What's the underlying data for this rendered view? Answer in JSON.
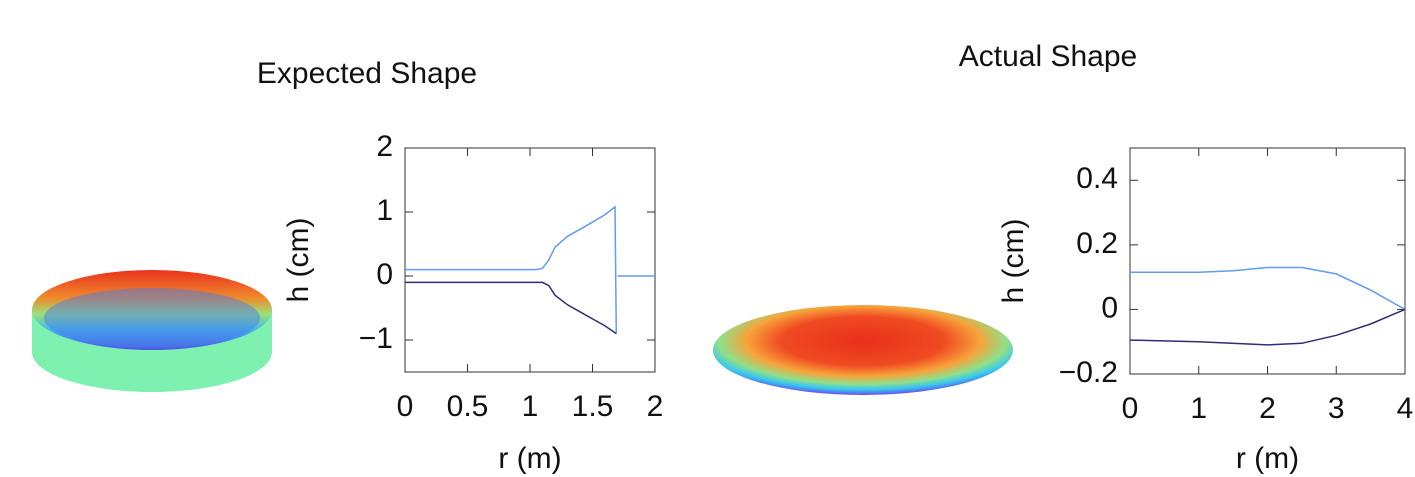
{
  "chart_data": [
    {
      "type": "line",
      "title": "Expected Shape",
      "xlabel": "r  (m)",
      "ylabel": "h  (cm)",
      "xlim": [
        0,
        2
      ],
      "xticks": [
        0,
        0.5,
        1,
        1.5,
        2
      ],
      "ylim": [
        -1.5,
        2
      ],
      "yticks": [
        {
          "value": -1,
          "label": "−1"
        },
        0,
        1,
        2
      ],
      "series": [
        {
          "color": "#5f9cf5",
          "x": [
            0,
            1.05,
            1.1,
            1.15,
            1.2,
            1.3,
            1.4,
            1.5,
            1.6,
            1.68,
            1.69,
            1.7,
            1.7,
            2
          ],
          "values": [
            0.1,
            0.1,
            0.12,
            0.25,
            0.45,
            0.62,
            0.73,
            0.84,
            0.96,
            1.08,
            -0.9,
            null,
            0,
            0
          ]
        },
        {
          "color": "#2e2e78",
          "x": [
            0,
            1.1,
            1.15,
            1.2,
            1.3,
            1.4,
            1.5,
            1.6,
            1.69
          ],
          "values": [
            -0.1,
            -0.1,
            -0.15,
            -0.3,
            -0.45,
            -0.56,
            -0.67,
            -0.78,
            -0.9
          ]
        }
      ]
    },
    {
      "type": "line",
      "title": "Actual Shape",
      "xlabel": "r  (m)",
      "ylabel": "h  (cm)",
      "xlim": [
        0,
        4
      ],
      "xticks": [
        0,
        1,
        2,
        3,
        4
      ],
      "ylim": [
        -0.2,
        0.5
      ],
      "yticks": [
        {
          "value": -0.2,
          "label": "−0.2"
        },
        0,
        0.2,
        0.4
      ],
      "series": [
        {
          "color": "#5f9cf5",
          "x": [
            0,
            1,
            1.5,
            2,
            2.5,
            3,
            3.5,
            4
          ],
          "values": [
            0.115,
            0.115,
            0.12,
            0.13,
            0.13,
            0.11,
            0.06,
            0
          ]
        },
        {
          "color": "#2e2e78",
          "x": [
            0,
            1,
            2,
            2.5,
            3,
            3.5,
            4
          ],
          "values": [
            -0.095,
            -0.1,
            -0.11,
            -0.105,
            -0.08,
            -0.045,
            0
          ]
        }
      ]
    }
  ]
}
